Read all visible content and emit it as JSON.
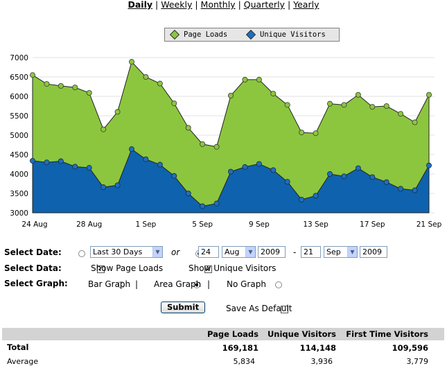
{
  "nav": {
    "items": [
      {
        "label": "Daily",
        "active": true
      },
      {
        "label": "Weekly",
        "active": false
      },
      {
        "label": "Monthly",
        "active": false
      },
      {
        "label": "Quarterly",
        "active": false
      },
      {
        "label": "Yearly",
        "active": false
      }
    ],
    "separator": "|"
  },
  "legend": {
    "page_loads": "Page Loads",
    "unique_visitors": "Unique Visitors"
  },
  "colors": {
    "page_loads_fill": "#8cc63f",
    "page_loads_dot": "#8cc63f",
    "unique_fill": "#0f62ad",
    "unique_dot": "#1f6fbf",
    "grid": "#e0e0e0"
  },
  "chart_data": {
    "type": "area",
    "ylim": [
      3000,
      7000
    ],
    "yticks": [
      3000,
      3500,
      4000,
      4500,
      5000,
      5500,
      6000,
      6500,
      7000
    ],
    "x_labels": [
      "24 Aug",
      "28 Aug",
      "1 Sep",
      "5 Sep",
      "9 Sep",
      "13 Sep",
      "17 Sep",
      "21 Sep"
    ],
    "days": 29,
    "series": [
      {
        "name": "Page Loads",
        "values": [
          6550,
          6320,
          6270,
          6230,
          6090,
          5150,
          5600,
          6890,
          6500,
          6330,
          5820,
          5190,
          4770,
          4700,
          6020,
          6430,
          6430,
          6070,
          5780,
          5070,
          5050,
          5810,
          5780,
          6040,
          5730,
          5750,
          5550,
          5330,
          6040
        ]
      },
      {
        "name": "Unique Visitors",
        "values": [
          4340,
          4300,
          4330,
          4190,
          4160,
          3660,
          3710,
          4640,
          4380,
          4240,
          3950,
          3500,
          3170,
          3240,
          4060,
          4180,
          4260,
          4100,
          3800,
          3340,
          3440,
          4000,
          3940,
          4150,
          3920,
          3790,
          3620,
          3580,
          4220
        ]
      }
    ]
  },
  "controls": {
    "select_date_label": "Select Date:",
    "range_option": "Last 30 Days",
    "or_label": "or",
    "from_day": "24",
    "from_month": "Aug",
    "from_year": "2009",
    "dash": "-",
    "to_day": "21",
    "to_month": "Sep",
    "to_year": "2009",
    "select_data_label": "Select Data:",
    "show_page_loads": "Show Page Loads",
    "show_unique_visitors": "Show Unique Visitors",
    "select_graph_label": "Select Graph:",
    "bar_graph": "Bar Graph",
    "area_graph": "Area Graph",
    "no_graph": "No Graph",
    "pipe": "|",
    "submit": "Submit",
    "save_default": "Save As Default"
  },
  "stats": {
    "headers": [
      "Page Loads",
      "Unique Visitors",
      "First Time Visitors"
    ],
    "total": {
      "label": "Total",
      "values": [
        "169,181",
        "114,148",
        "109,596"
      ]
    },
    "average": {
      "label": "Average",
      "values": [
        "5,834",
        "3,936",
        "3,779"
      ]
    }
  }
}
